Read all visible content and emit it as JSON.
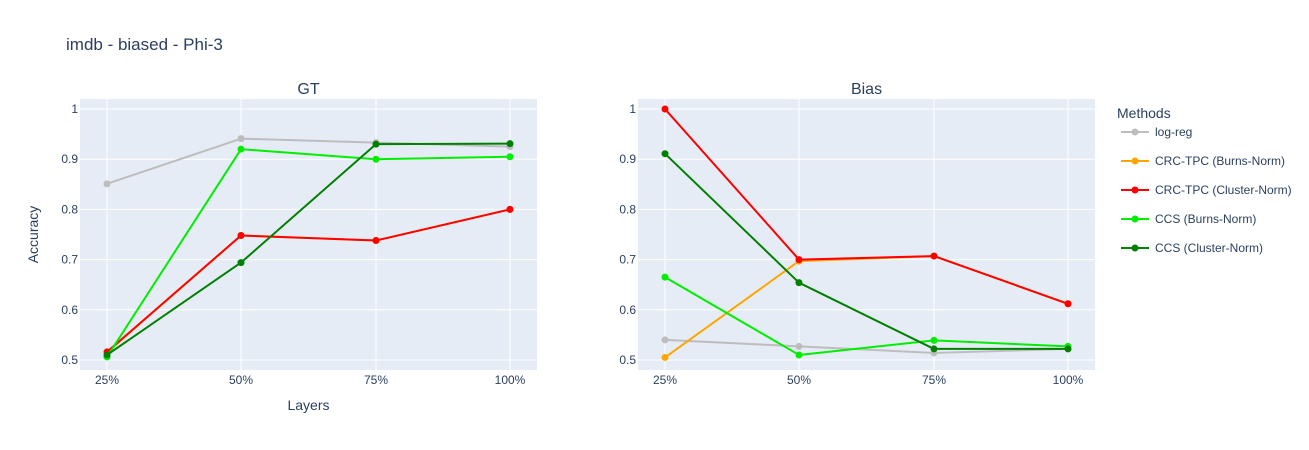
{
  "title": "imdb - biased - Phi-3",
  "legend": {
    "title": "Methods",
    "entries": [
      "log-reg",
      "CRC-TPC (Burns-Norm)",
      "CRC-TPC (Cluster-Norm)",
      "CCS (Burns-Norm)",
      "CCS (Cluster-Norm)"
    ]
  },
  "chart_data": [
    {
      "type": "line",
      "title": "GT",
      "xlabel": "Layers",
      "ylabel": "Accuracy",
      "categories": [
        "25%",
        "50%",
        "75%",
        "100%"
      ],
      "ylim": [
        0.48,
        1.02
      ],
      "yticks": [
        0.5,
        0.6,
        0.7,
        0.8,
        0.9,
        1
      ],
      "ytick_labels": [
        "0.5",
        "0.6",
        "0.7",
        "0.8",
        "0.9",
        "1"
      ],
      "series": [
        {
          "name": "log-reg",
          "color": "#bdbdbd",
          "values": [
            0.851,
            0.941,
            0.933,
            0.925
          ]
        },
        {
          "name": "CRC-TPC (Burns-Norm)",
          "color": "#ffa500",
          "values": [
            0.515,
            0.748,
            0.738,
            0.8
          ]
        },
        {
          "name": "CRC-TPC (Cluster-Norm)",
          "color": "#ff0000",
          "values": [
            0.516,
            0.748,
            0.738,
            0.8
          ]
        },
        {
          "name": "CCS (Burns-Norm)",
          "color": "#00ee00",
          "values": [
            0.506,
            0.92,
            0.9,
            0.905
          ]
        },
        {
          "name": "CCS (Cluster-Norm)",
          "color": "#008000",
          "values": [
            0.51,
            0.694,
            0.93,
            0.931
          ]
        }
      ]
    },
    {
      "type": "line",
      "title": "Bias",
      "xlabel": "",
      "ylabel": "",
      "categories": [
        "25%",
        "50%",
        "75%",
        "100%"
      ],
      "ylim": [
        0.48,
        1.02
      ],
      "yticks": [
        0.5,
        0.6,
        0.7,
        0.8,
        0.9,
        1
      ],
      "ytick_labels": [
        "0.5",
        "0.6",
        "0.7",
        "0.8",
        "0.9",
        "1"
      ],
      "series": [
        {
          "name": "log-reg",
          "color": "#bdbdbd",
          "values": [
            0.54,
            0.527,
            0.514,
            0.522
          ]
        },
        {
          "name": "CRC-TPC (Burns-Norm)",
          "color": "#ffa500",
          "values": [
            0.505,
            0.697,
            0.707,
            0.612
          ]
        },
        {
          "name": "CRC-TPC (Cluster-Norm)",
          "color": "#ff0000",
          "values": [
            1.0,
            0.7,
            0.707,
            0.612
          ]
        },
        {
          "name": "CCS (Burns-Norm)",
          "color": "#00ee00",
          "values": [
            0.665,
            0.51,
            0.539,
            0.527
          ]
        },
        {
          "name": "CCS (Cluster-Norm)",
          "color": "#008000",
          "values": [
            0.911,
            0.654,
            0.522,
            0.522
          ]
        }
      ]
    }
  ]
}
